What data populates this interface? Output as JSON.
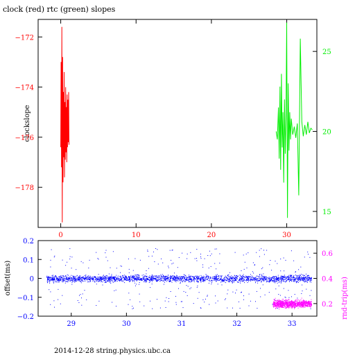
{
  "title": "clock (red) rtc (green) slopes",
  "footer": "2014-12-28  string.physics.ubc.ca",
  "colors": {
    "red": "#ff0000",
    "green": "#00ee00",
    "blue": "#0000ff",
    "magenta": "#ff00ff",
    "black": "#000000"
  },
  "chart_data": [
    {
      "type": "line",
      "title": "clock (red) rtc (green) slopes",
      "ylabel": "clockslope",
      "xlim": [
        -3,
        34
      ],
      "ylim_left": [
        -179.6,
        -171.3
      ],
      "ylim_right": [
        14,
        27
      ],
      "x_ticks": [
        0,
        10,
        20,
        30
      ],
      "y_ticks_left": [
        -172,
        -174,
        -176,
        -178
      ],
      "y_ticks_right": [
        15,
        20,
        25
      ],
      "grid": false,
      "series": [
        {
          "name": "clock",
          "axis": "left",
          "x": [
            0.0,
            0.05,
            0.1,
            0.15,
            0.2,
            0.25,
            0.3,
            0.35,
            0.4,
            0.45,
            0.5,
            0.55,
            0.6,
            0.65,
            0.7,
            0.75,
            0.8,
            0.85,
            0.9,
            0.95,
            1.0,
            1.05,
            1.1
          ],
          "y": [
            -176.4,
            -173.0,
            -177.2,
            -171.6,
            -179.4,
            -172.8,
            -177.8,
            -174.2,
            -176.8,
            -173.4,
            -177.6,
            -174.6,
            -176.9,
            -174.0,
            -176.6,
            -174.8,
            -177.0,
            -174.3,
            -176.4,
            -174.5,
            -176.2,
            -174.2,
            -176.3
          ]
        },
        {
          "name": "rtc",
          "axis": "right",
          "x": [
            28.6,
            28.75,
            28.9,
            29.0,
            29.1,
            29.2,
            29.3,
            29.4,
            29.5,
            29.6,
            29.7,
            29.8,
            29.9,
            30.0,
            30.1,
            30.2,
            30.3,
            30.4,
            30.5,
            30.6,
            30.8,
            31.0,
            31.2,
            31.4,
            31.6,
            31.8,
            32.0,
            32.2,
            32.4,
            32.6,
            32.8,
            33.0,
            33.2,
            33.4
          ],
          "y": [
            20.0,
            19.5,
            21.5,
            18.3,
            22.8,
            17.6,
            23.6,
            19.0,
            21.2,
            16.8,
            22.0,
            18.6,
            21.0,
            26.8,
            14.6,
            23.0,
            18.8,
            21.2,
            19.5,
            20.8,
            19.8,
            20.3,
            19.6,
            20.5,
            16.0,
            25.8,
            20.6,
            19.7,
            20.4,
            19.8,
            20.6,
            19.9,
            20.2,
            20.1
          ]
        }
      ]
    },
    {
      "type": "scatter",
      "ylabel": "offset(ms)",
      "ylabel_right": "rnd-trip(ms)",
      "xlim": [
        28.4,
        33.45
      ],
      "ylim_left": [
        -0.2,
        0.2
      ],
      "ylim_right": [
        0.1,
        0.7
      ],
      "x_ticks": [
        29,
        30,
        31,
        32,
        33
      ],
      "y_ticks_left": [
        "0.2",
        "0.1",
        "0",
        "-0.1",
        "-0.2"
      ],
      "y_ticks_right": [
        "0.6",
        "0.4",
        "0.2"
      ],
      "grid": false,
      "series": [
        {
          "name": "offset",
          "axis": "left",
          "x_range": [
            28.55,
            33.35
          ],
          "center": 0.0,
          "core_spread": 0.03,
          "outer_spread": 0.16
        },
        {
          "name": "rnd-trip",
          "axis": "right",
          "x_range": [
            32.65,
            33.35
          ],
          "center": 0.2,
          "core_spread": 0.05
        }
      ]
    }
  ]
}
